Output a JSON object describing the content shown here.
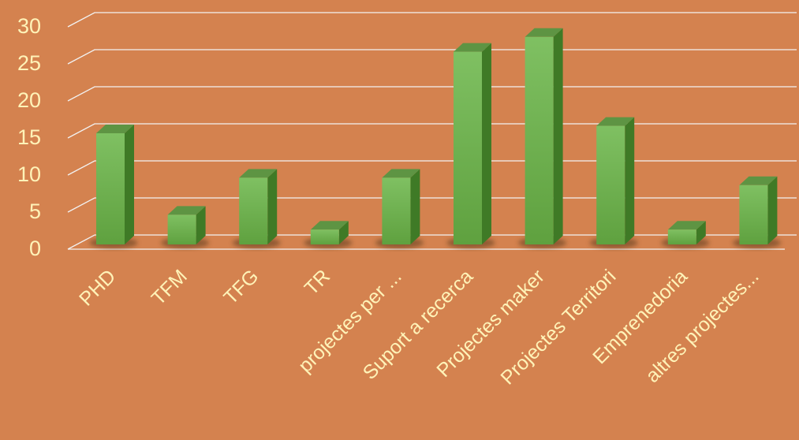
{
  "chart_data": {
    "type": "bar",
    "style": "3d-column",
    "categories": [
      "PHD",
      "TFM",
      "TFG",
      "TR",
      "projectes per ...",
      "Suport a recerca",
      "Projectes maker",
      "Projectes Territori",
      "Emprenedoria",
      "altres projectes..."
    ],
    "values": [
      15,
      4,
      9,
      2,
      9,
      26,
      28,
      16,
      2,
      8
    ],
    "title": "",
    "xlabel": "",
    "ylabel": "",
    "ylim": [
      0,
      30
    ],
    "yticks": [
      0,
      5,
      10,
      15,
      20,
      25,
      30
    ],
    "grid": true,
    "legend": "none",
    "colors": {
      "background": "#d4824f",
      "bar_front_top": "#7fc062",
      "bar_front_bottom": "#5fa13f",
      "bar_side": "#3f7a26",
      "bar_top": "#5e9443",
      "gridline": "#f2f2f2",
      "labels": "#fff3b8"
    }
  }
}
